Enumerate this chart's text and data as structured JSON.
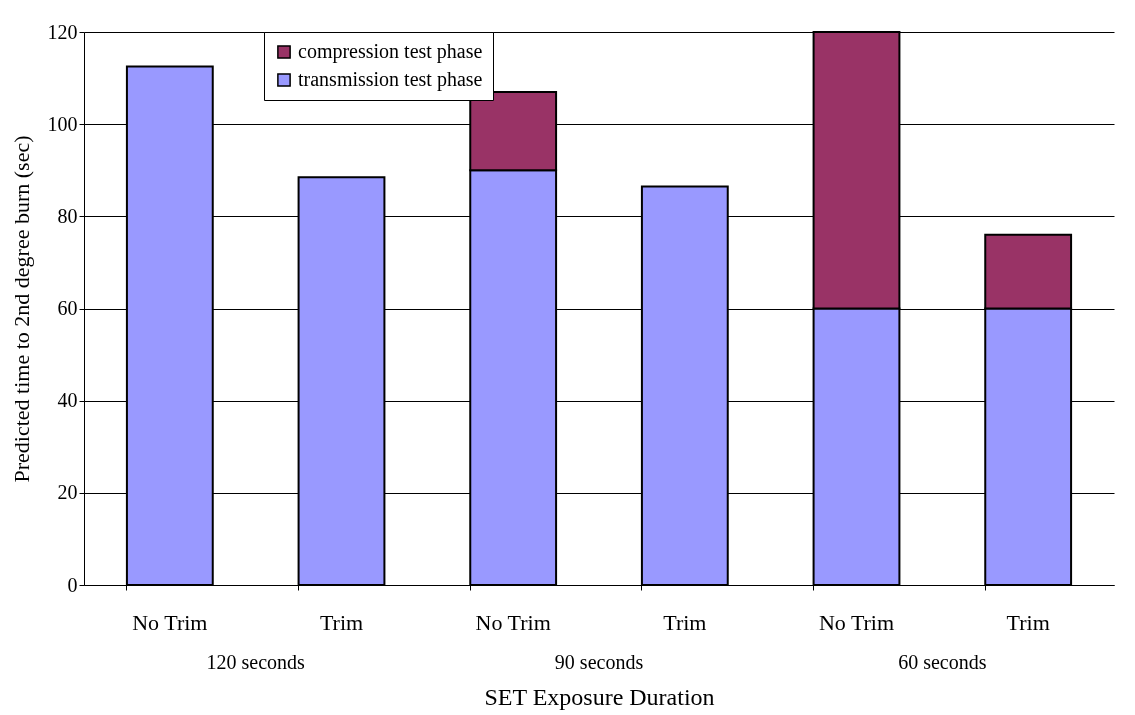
{
  "chart_data": {
    "type": "bar",
    "stacked": true,
    "xlabel": "SET Exposure Duration",
    "ylabel": "Predicted time to 2nd degree burn (sec)",
    "categories": [
      "No Trim",
      "Trim",
      "No Trim",
      "Trim",
      "No Trim",
      "Trim"
    ],
    "series": [
      {
        "name": "transmission test phase",
        "color": "#9999ff",
        "values": [
          112.5,
          88.5,
          90,
          86.5,
          60,
          60
        ]
      },
      {
        "name": "compression test phase",
        "color": "#993366",
        "values": [
          null,
          null,
          17,
          null,
          60,
          16
        ]
      }
    ],
    "ylim": [
      0,
      120
    ],
    "yticks": [
      0,
      20,
      40,
      60,
      80,
      100,
      120
    ],
    "grid": "y",
    "legend": "top left",
    "annotations": [
      "120 seconds",
      "90 seconds",
      "60 seconds"
    ]
  }
}
